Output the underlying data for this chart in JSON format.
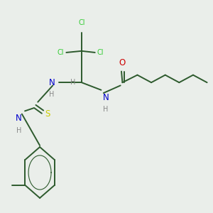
{
  "background_color": "#eaeeea",
  "bond_color": "#2d5a2d",
  "cl_color": "#33cc33",
  "n_color": "#0000cc",
  "o_color": "#cc0000",
  "s_color": "#cccc00",
  "h_color": "#888888",
  "font_size": 8.5,
  "small_font": 7.0,
  "figsize": [
    3.0,
    3.0
  ],
  "dpi": 100,
  "xlim": [
    0,
    10
  ],
  "ylim": [
    0,
    10
  ]
}
